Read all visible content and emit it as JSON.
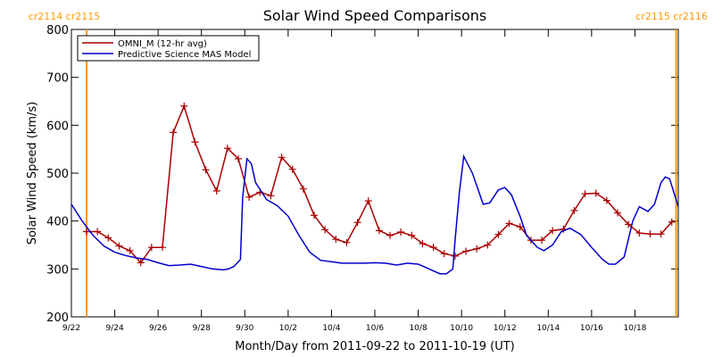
{
  "chart_data": {
    "type": "line",
    "title": "Solar Wind Speed Comparisons",
    "xlabel": "Month/Day from 2011-09-22 to 2011-10-19 (UT)",
    "ylabel": "Solar Wind Speed (km/s)",
    "xlim": [
      0,
      28
    ],
    "ylim": [
      200,
      800
    ],
    "xticks": [
      {
        "value": 0,
        "label": "9/22"
      },
      {
        "value": 2,
        "label": "9/24"
      },
      {
        "value": 4,
        "label": "9/26"
      },
      {
        "value": 6,
        "label": "9/28"
      },
      {
        "value": 8,
        "label": "9/30"
      },
      {
        "value": 10,
        "label": "10/2"
      },
      {
        "value": 12,
        "label": "10/4"
      },
      {
        "value": 14,
        "label": "10/6"
      },
      {
        "value": 16,
        "label": "10/8"
      },
      {
        "value": 18,
        "label": "10/10"
      },
      {
        "value": 20,
        "label": "10/12"
      },
      {
        "value": 22,
        "label": "10/14"
      },
      {
        "value": 24,
        "label": "10/16"
      },
      {
        "value": 26,
        "label": "10/18"
      }
    ],
    "yticks": [
      200,
      300,
      400,
      500,
      600,
      700,
      800
    ],
    "legend": "upper left",
    "annotations": [
      {
        "text": "cr2114 cr2115",
        "x": 0.7,
        "color": "#ff9900"
      },
      {
        "text": "cr2115 cr2116",
        "x": 27.9,
        "color": "#ff9900"
      }
    ],
    "series": [
      {
        "name": "OMNI_M (12-hr avg)",
        "color": "#aa0000",
        "marker": "+",
        "x": [
          0.7,
          1.2,
          1.7,
          2.2,
          2.7,
          3.2,
          3.7,
          4.2,
          4.7,
          5.2,
          5.7,
          6.2,
          6.7,
          7.2,
          7.7,
          8.2,
          8.7,
          9.2,
          9.7,
          10.2,
          10.7,
          11.2,
          11.7,
          12.2,
          12.7,
          13.2,
          13.7,
          14.2,
          14.7,
          15.2,
          15.7,
          16.2,
          16.7,
          17.2,
          17.7,
          18.2,
          18.7,
          19.2,
          19.7,
          20.2,
          20.7,
          21.2,
          21.7,
          22.2,
          22.7,
          23.2,
          23.7,
          24.2,
          24.7,
          25.2,
          25.7,
          26.2,
          26.7,
          27.2,
          27.7
        ],
        "values": [
          378,
          378,
          365,
          348,
          338,
          313,
          345,
          345,
          585,
          640,
          565,
          507,
          463,
          552,
          530,
          450,
          460,
          453,
          533,
          508,
          467,
          412,
          382,
          362,
          355,
          397,
          442,
          380,
          370,
          377,
          370,
          353,
          345,
          332,
          327,
          337,
          342,
          350,
          372,
          395,
          388,
          360,
          360,
          380,
          383,
          422,
          457,
          458,
          443,
          417,
          393,
          375,
          373,
          373,
          398
        ]
      },
      {
        "name": "Predictive Science MAS Model",
        "color": "#0000cc",
        "x": [
          0,
          0.5,
          1,
          1.5,
          2,
          2.5,
          3,
          3.5,
          4,
          4.5,
          5,
          5.5,
          6,
          6.5,
          7,
          7.25,
          7.5,
          7.8,
          7.9,
          8.1,
          8.3,
          8.5,
          9,
          9.5,
          10,
          10.5,
          11,
          11.5,
          12,
          12.5,
          13,
          13.5,
          14,
          14.5,
          15,
          15.5,
          16,
          16.5,
          17,
          17.3,
          17.6,
          17.7,
          17.9,
          18.1,
          18.5,
          19,
          19.3,
          19.7,
          20,
          20.3,
          20.7,
          21,
          21.5,
          21.8,
          22.2,
          22.6,
          23,
          23.5,
          24,
          24.5,
          24.8,
          25.1,
          25.5,
          25.9,
          26.2,
          26.6,
          26.9,
          27.2,
          27.4,
          27.6,
          28
        ],
        "values": [
          435,
          400,
          370,
          348,
          335,
          328,
          323,
          320,
          313,
          307,
          308,
          310,
          305,
          300,
          298,
          300,
          305,
          320,
          450,
          530,
          520,
          480,
          445,
          432,
          410,
          370,
          335,
          318,
          315,
          312,
          312,
          312,
          313,
          312,
          308,
          312,
          310,
          300,
          290,
          290,
          300,
          360,
          460,
          535,
          500,
          435,
          438,
          465,
          470,
          455,
          410,
          370,
          345,
          338,
          350,
          378,
          385,
          372,
          345,
          320,
          310,
          310,
          325,
          400,
          430,
          420,
          435,
          480,
          492,
          488,
          430
        ]
      }
    ]
  }
}
